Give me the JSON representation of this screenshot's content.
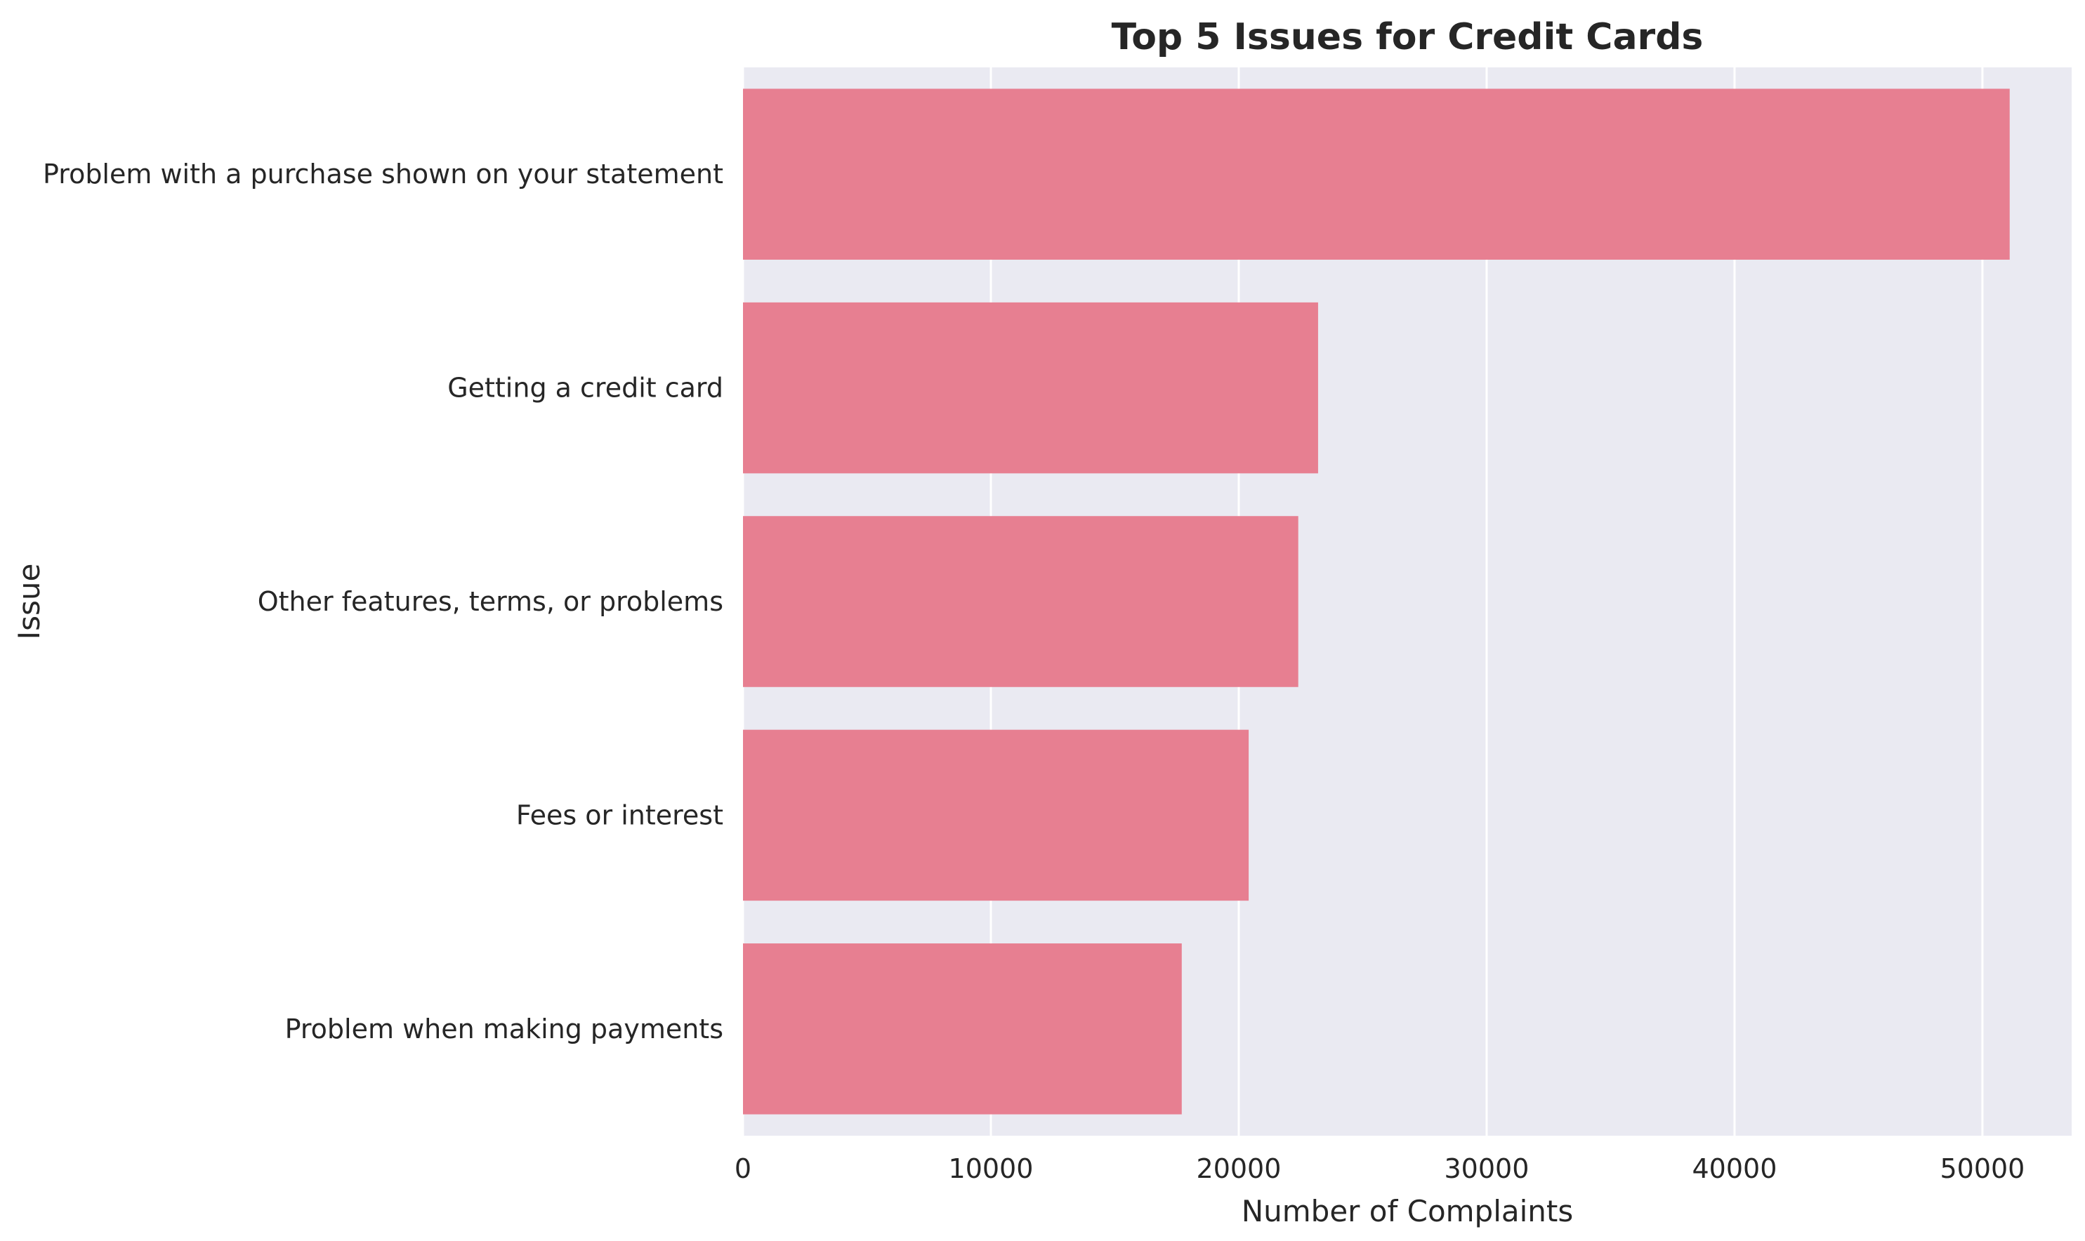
{
  "chart_data": {
    "type": "bar",
    "orientation": "horizontal",
    "title": "Top 5 Issues for Credit Cards",
    "xlabel": "Number of Complaints",
    "ylabel": "Issue",
    "categories": [
      "Problem with a purchase shown on your statement",
      "Getting a credit card",
      "Other features, terms, or problems",
      "Fees or interest",
      "Problem when making payments"
    ],
    "values": [
      51100,
      23200,
      22400,
      20400,
      17700
    ],
    "xlim": [
      0,
      53600
    ],
    "xticks": [
      0,
      10000,
      20000,
      30000,
      40000,
      50000
    ],
    "xtick_labels": [
      "0",
      "10000",
      "20000",
      "30000",
      "40000",
      "50000"
    ],
    "grid": true,
    "colors": {
      "bar": "#e77f91",
      "plot_background": "#eaeaf2",
      "grid": "#ffffff",
      "text": "#262626"
    }
  }
}
